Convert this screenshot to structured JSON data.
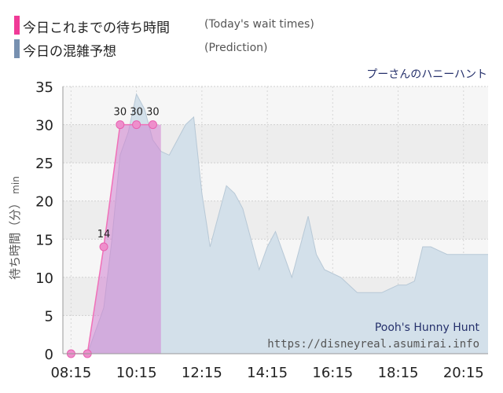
{
  "legend": [
    {
      "label": "今日これまでの待ち時間",
      "note": "(Today's wait times)",
      "color": "#f03a97"
    },
    {
      "label": "今日の混雑予想",
      "note": "(Prediction)",
      "color": "#7790b0"
    }
  ],
  "attraction_jp": "プーさんのハニーハント",
  "watermark": {
    "name": "Pooh's Hunny Hunt",
    "url": "https://disneyreal.asumirai.info"
  },
  "chart_data": {
    "type": "area",
    "title": "",
    "ylabel": "待ち時間（分）",
    "ylabel_unit": "min",
    "xlabel": "",
    "x_ticks": [
      "08:15",
      "10:15",
      "12:15",
      "14:15",
      "16:15",
      "18:15",
      "20:15"
    ],
    "y_ticks": [
      0,
      5,
      10,
      15,
      20,
      25,
      30,
      35
    ],
    "xlim": [
      "08:00",
      "21:00"
    ],
    "ylim": [
      0,
      35
    ],
    "grid": true,
    "series": [
      {
        "name": "今日の混雑予想",
        "color": "#7790b0",
        "x": [
          "08:15",
          "08:45",
          "09:15",
          "09:30",
          "09:45",
          "10:00",
          "10:15",
          "10:30",
          "10:45",
          "11:00",
          "11:15",
          "11:30",
          "11:45",
          "12:00",
          "12:15",
          "12:30",
          "12:45",
          "13:00",
          "13:15",
          "13:30",
          "13:45",
          "14:00",
          "14:15",
          "14:30",
          "14:45",
          "15:00",
          "15:15",
          "15:30",
          "15:45",
          "16:00",
          "16:15",
          "16:30",
          "16:45",
          "17:00",
          "17:15",
          "17:30",
          "17:45",
          "18:00",
          "18:15",
          "18:30",
          "18:45",
          "19:00",
          "19:15",
          "19:30",
          "19:45",
          "20:00",
          "20:15",
          "20:30",
          "21:00"
        ],
        "values": [
          0,
          0,
          6,
          15,
          26,
          29,
          34,
          32,
          28,
          26.5,
          26,
          28,
          30,
          31,
          21,
          14,
          18,
          22,
          21,
          19,
          15,
          11,
          14,
          16,
          13,
          10,
          14,
          18,
          13,
          11,
          10.5,
          10,
          9,
          8,
          8,
          8,
          8,
          8.5,
          9,
          9,
          9.5,
          14,
          14,
          13.5,
          13,
          13,
          13,
          13,
          13
        ]
      },
      {
        "name": "今日これまでの待ち時間",
        "color": "#f03a97",
        "x": [
          "08:15",
          "08:45",
          "09:15",
          "09:45",
          "10:15",
          "10:45"
        ],
        "values": [
          0,
          0,
          14,
          30,
          30,
          30
        ]
      }
    ],
    "data_labels": [
      {
        "x": "09:15",
        "text": "14"
      },
      {
        "x": "09:45",
        "text": "30"
      },
      {
        "x": "10:15",
        "text": "30"
      },
      {
        "x": "10:45",
        "text": "30"
      }
    ]
  }
}
